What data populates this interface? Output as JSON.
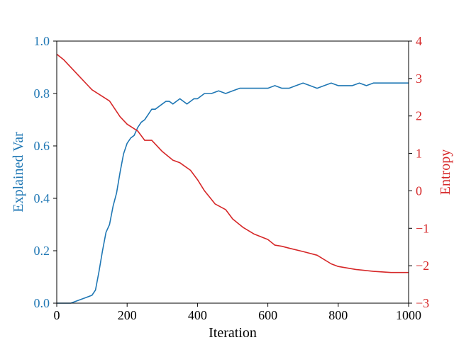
{
  "colors": {
    "left_series": "#1f77b4",
    "right_series": "#d62728",
    "axis": "#000000",
    "background": "#ffffff"
  },
  "chart_data": {
    "type": "line",
    "title": "",
    "grid": false,
    "legend": "none",
    "xlabel": "Iteration",
    "xlim": [
      0,
      1000
    ],
    "xticks": [
      0,
      200,
      400,
      600,
      800,
      1000
    ],
    "ylabel_left": "Explained Var",
    "ylim_left": [
      0.0,
      1.0
    ],
    "yticks_left": [
      "0.0",
      "0.2",
      "0.4",
      "0.6",
      "0.8",
      "1.0"
    ],
    "ylabel_right": "Entropy",
    "ylim_right": [
      -3,
      4
    ],
    "yticks_right": [
      "4",
      "3",
      "2",
      "1",
      "0",
      "−1",
      "−2",
      "−3"
    ],
    "series": [
      {
        "axis": "left",
        "color": "#1f77b4",
        "x": [
          0,
          20,
          40,
          60,
          80,
          100,
          110,
          120,
          130,
          140,
          150,
          160,
          170,
          180,
          190,
          200,
          210,
          220,
          230,
          240,
          250,
          260,
          270,
          280,
          290,
          300,
          310,
          320,
          330,
          340,
          350,
          360,
          370,
          380,
          390,
          400,
          420,
          440,
          460,
          480,
          500,
          520,
          540,
          560,
          580,
          600,
          620,
          640,
          660,
          680,
          700,
          720,
          740,
          760,
          780,
          800,
          820,
          840,
          860,
          880,
          900,
          920,
          940,
          960,
          980,
          1000
        ],
        "values": [
          0.0,
          0.0,
          0.0,
          0.01,
          0.02,
          0.03,
          0.05,
          0.12,
          0.2,
          0.27,
          0.3,
          0.37,
          0.42,
          0.5,
          0.57,
          0.61,
          0.63,
          0.64,
          0.67,
          0.69,
          0.7,
          0.72,
          0.74,
          0.74,
          0.75,
          0.76,
          0.77,
          0.77,
          0.76,
          0.77,
          0.78,
          0.77,
          0.76,
          0.77,
          0.78,
          0.78,
          0.8,
          0.8,
          0.81,
          0.8,
          0.81,
          0.82,
          0.82,
          0.82,
          0.82,
          0.82,
          0.83,
          0.82,
          0.82,
          0.83,
          0.84,
          0.83,
          0.82,
          0.83,
          0.84,
          0.83,
          0.83,
          0.83,
          0.84,
          0.83,
          0.84,
          0.84,
          0.84,
          0.84,
          0.84,
          0.84
        ]
      },
      {
        "axis": "right",
        "color": "#d62728",
        "x": [
          0,
          20,
          50,
          100,
          150,
          180,
          200,
          230,
          250,
          270,
          300,
          330,
          350,
          380,
          400,
          420,
          450,
          480,
          500,
          530,
          560,
          600,
          620,
          640,
          660,
          700,
          740,
          780,
          800,
          850,
          900,
          950,
          1000
        ],
        "values": [
          3.65,
          3.5,
          3.2,
          2.7,
          2.4,
          1.98,
          1.78,
          1.6,
          1.35,
          1.35,
          1.05,
          0.82,
          0.75,
          0.55,
          0.3,
          0.0,
          -0.35,
          -0.5,
          -0.75,
          -0.98,
          -1.15,
          -1.3,
          -1.45,
          -1.48,
          -1.53,
          -1.62,
          -1.72,
          -1.95,
          -2.02,
          -2.1,
          -2.15,
          -2.18,
          -2.18
        ]
      }
    ]
  }
}
